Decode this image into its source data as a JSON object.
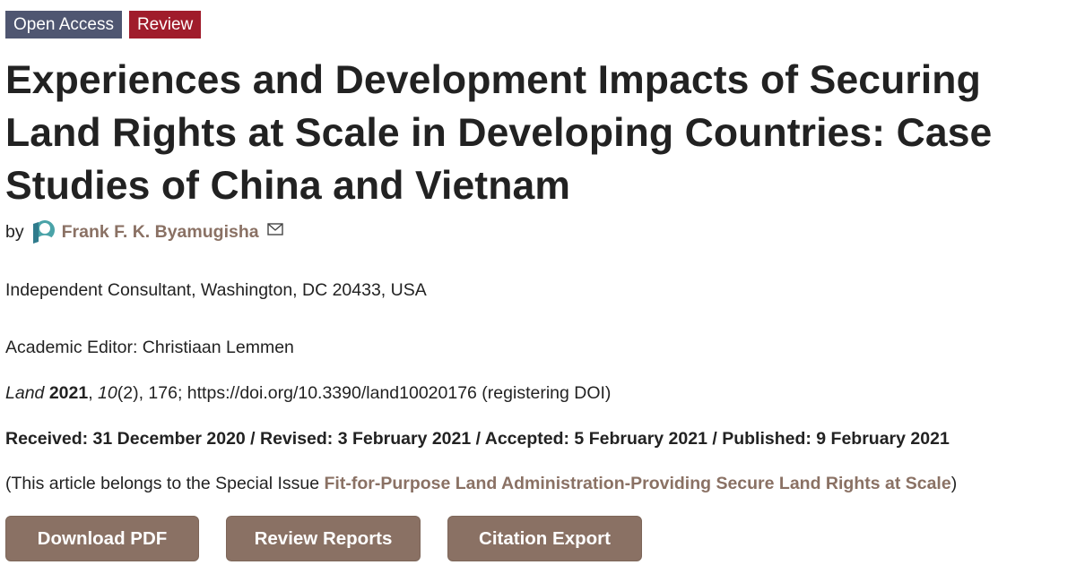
{
  "badges": {
    "open_access": "Open Access",
    "review": "Review"
  },
  "article": {
    "title": "Experiences and Development Impacts of Securing Land Rights at Scale in Developing Countries: Case Studies of China and Vietnam",
    "by_label": "by",
    "author": "Frank F. K. Byamugisha",
    "affiliation": "Independent Consultant, Washington, DC 20433, USA",
    "academic_editor": "Academic Editor: Christiaan Lemmen",
    "citation": {
      "journal": "Land",
      "year": "2021",
      "volume": "10",
      "issue_pages": "(2), 176; https://doi.org/10.3390/land10020176 (registering DOI)"
    },
    "dates": "Received: 31 December 2020 / Revised: 3 February 2021 / Accepted: 5 February 2021 / Published: 9 February 2021",
    "special_issue": {
      "prefix": "(This article belongs to the Special Issue ",
      "name": "Fit-for-Purpose Land Administration-Providing Secure Land Rights at Scale",
      "suffix": ")"
    }
  },
  "buttons": {
    "download_pdf": "Download PDF",
    "review_reports": "Review Reports",
    "citation_export": "Citation Export"
  },
  "colors": {
    "badge_open_access": "#4f5671",
    "badge_review": "#a01c2b",
    "link_brown": "#8a7164",
    "button_bg": "#8a7164",
    "icon_teal": "#4aa3a8"
  },
  "icons": {
    "author": "user-profile-icon",
    "email": "envelope-icon"
  }
}
